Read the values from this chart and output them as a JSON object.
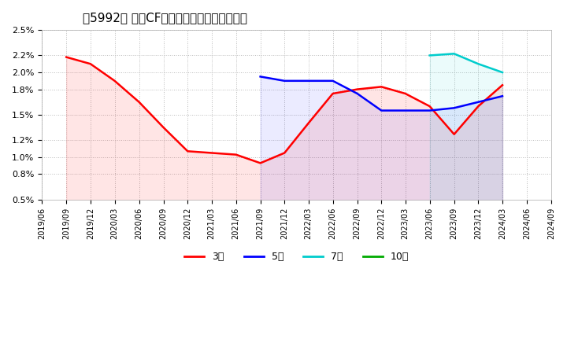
{
  "title": "［5992］ 営業CFマージンの標準偏差の推移",
  "background_color": "#ffffff",
  "plot_bg_color": "#ffffff",
  "grid_color": "#bbbbbb",
  "ylim": [
    0.005,
    0.025
  ],
  "yticks": [
    0.005,
    0.008,
    0.01,
    0.012,
    0.015,
    0.018,
    0.02,
    0.022,
    0.025
  ],
  "ytick_labels": [
    "0.5%",
    "0.8%",
    "1.0%",
    "1.2%",
    "1.5%",
    "1.8%",
    "2.0%",
    "2.2%",
    "2.5%"
  ],
  "series": {
    "3year": {
      "label": "3年",
      "color": "#ff0000",
      "dates": [
        "2019-09-01",
        "2019-12-01",
        "2020-03-01",
        "2020-06-01",
        "2020-09-01",
        "2020-12-01",
        "2021-03-01",
        "2021-06-01",
        "2021-09-01",
        "2021-12-01",
        "2022-03-01",
        "2022-06-01",
        "2022-09-01",
        "2022-12-01",
        "2023-03-01",
        "2023-06-01",
        "2023-09-01",
        "2023-12-01",
        "2024-03-01"
      ],
      "values": [
        0.0218,
        0.021,
        0.019,
        0.0165,
        0.0135,
        0.0107,
        0.0105,
        0.0103,
        0.0093,
        0.0105,
        0.014,
        0.0175,
        0.018,
        0.0183,
        0.0175,
        0.016,
        0.0127,
        0.016,
        0.0185
      ]
    },
    "5year": {
      "label": "5年",
      "color": "#0000ff",
      "dates": [
        "2021-09-01",
        "2021-12-01",
        "2022-03-01",
        "2022-06-01",
        "2022-09-01",
        "2022-12-01",
        "2023-03-01",
        "2023-06-01",
        "2023-09-01",
        "2023-12-01",
        "2024-03-01"
      ],
      "values": [
        0.0195,
        0.019,
        0.019,
        0.019,
        0.0175,
        0.0155,
        0.0155,
        0.0155,
        0.0158,
        0.0165,
        0.0172
      ]
    },
    "7year": {
      "label": "7年",
      "color": "#00cccc",
      "dates": [
        "2023-06-01",
        "2023-09-01",
        "2023-12-01",
        "2024-03-01"
      ],
      "values": [
        0.022,
        0.0222,
        0.021,
        0.02
      ]
    },
    "10year": {
      "label": "10年",
      "color": "#00aa00",
      "dates": [],
      "values": []
    }
  },
  "xmin": "2019-06-01",
  "xmax": "2024-09-01",
  "xtick_dates": [
    "2019-06-01",
    "2019-09-01",
    "2019-12-01",
    "2020-03-01",
    "2020-06-01",
    "2020-09-01",
    "2020-12-01",
    "2021-03-01",
    "2021-06-01",
    "2021-09-01",
    "2021-12-01",
    "2022-03-01",
    "2022-06-01",
    "2022-09-01",
    "2022-12-01",
    "2023-03-01",
    "2023-06-01",
    "2023-09-01",
    "2023-12-01",
    "2024-03-01",
    "2024-06-01",
    "2024-09-01"
  ],
  "xtick_labels": [
    "2019/06",
    "2019/09",
    "2019/12",
    "2020/03",
    "2020/06",
    "2020/09",
    "2020/12",
    "2021/03",
    "2021/06",
    "2021/09",
    "2021/12",
    "2022/03",
    "2022/06",
    "2022/09",
    "2022/12",
    "2023/03",
    "2023/06",
    "2023/09",
    "2023/12",
    "2024/03",
    "2024/06",
    "2024/09"
  ],
  "legend_entries": [
    "3年",
    "5年",
    "7年",
    "10年"
  ],
  "legend_colors": [
    "#ff0000",
    "#0000ff",
    "#00cccc",
    "#00aa00"
  ]
}
